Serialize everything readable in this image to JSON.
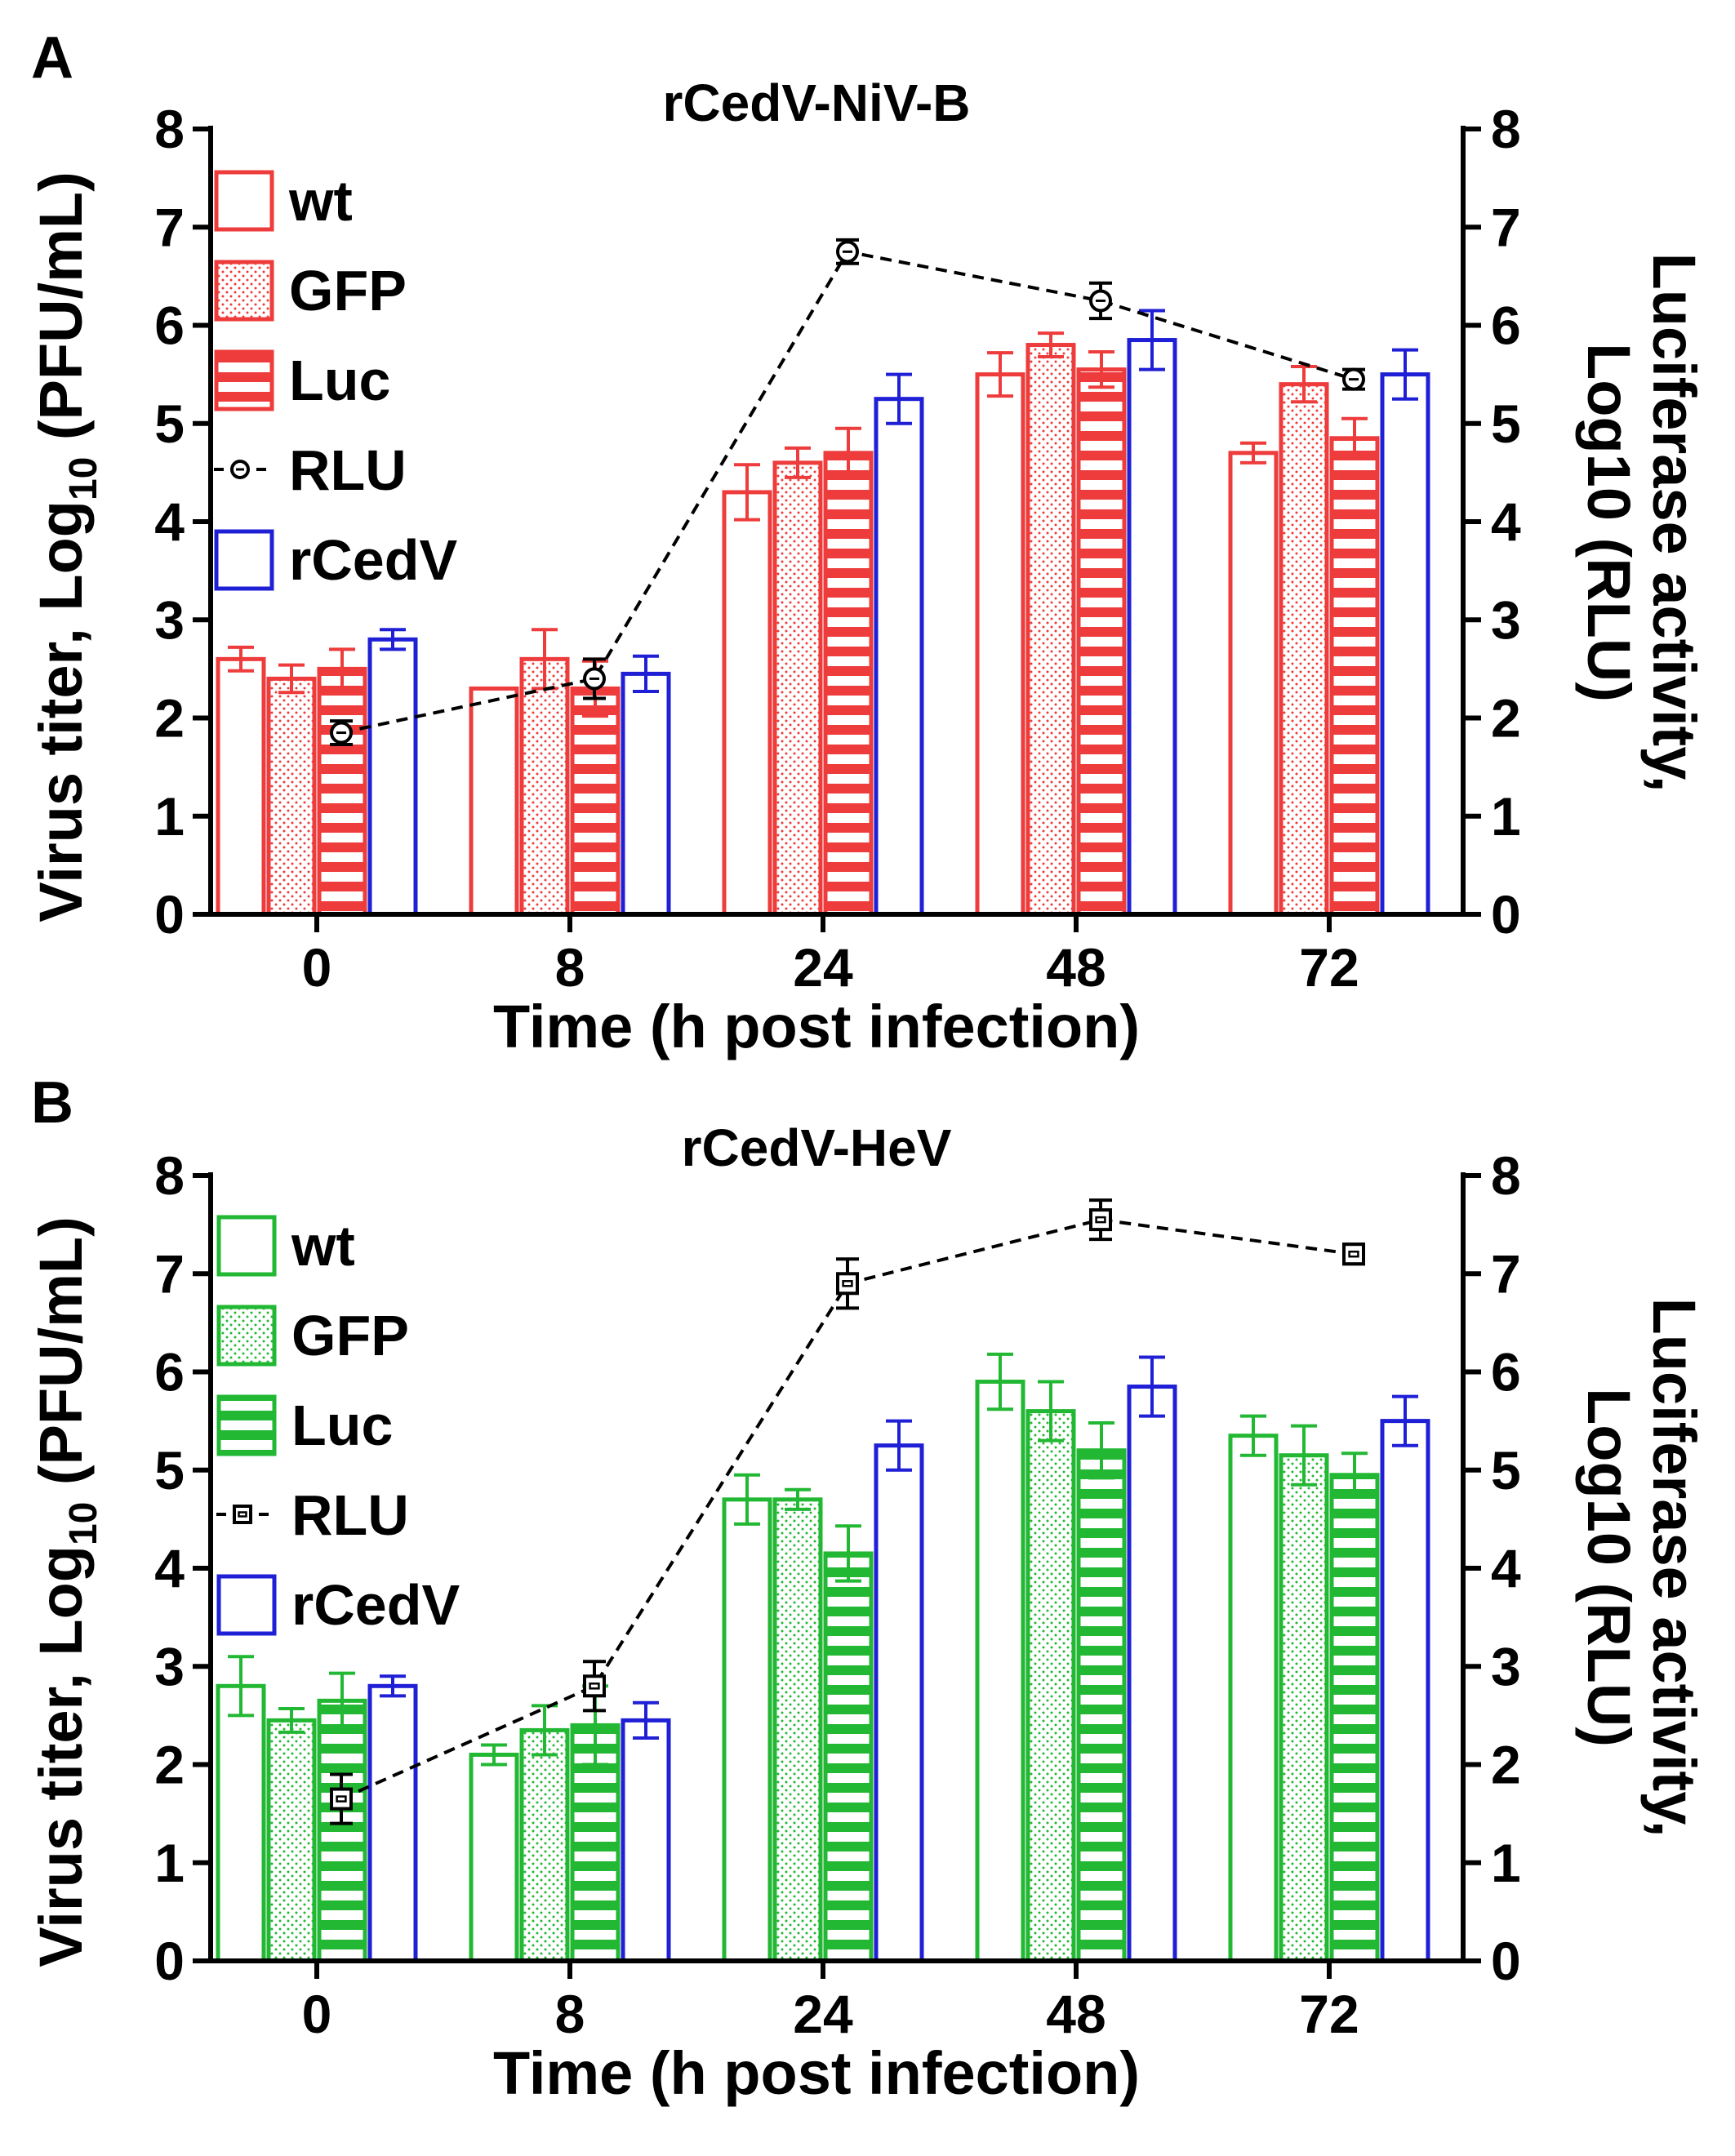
{
  "colors": {
    "red": "#ee3b3b",
    "green": "#22b833",
    "blue": "#1f1fd6",
    "black": "#000000"
  },
  "chart_data": [
    {
      "panel": "A",
      "type": "bar",
      "title": "rCedV-NiV-B",
      "xlabel": "Time (h post infection)",
      "ylabel_parts": [
        "Virus titer, Log",
        "10",
        " (PFU/mL)"
      ],
      "y2label_lines": [
        "Luciferase activity,",
        "Log10 (RLU)"
      ],
      "ylim": [
        0,
        8
      ],
      "y2lim": [
        0,
        8
      ],
      "yticks": [
        "0",
        "1",
        "2",
        "3",
        "4",
        "5",
        "6",
        "7",
        "8"
      ],
      "categories": [
        "0",
        "8",
        "24",
        "48",
        "72"
      ],
      "color": "red",
      "series": [
        {
          "name": "wt",
          "pattern": "open",
          "color": "red",
          "values": [
            2.6,
            2.3,
            4.3,
            5.5,
            4.7
          ],
          "err": [
            0.12,
            0.0,
            0.28,
            0.22,
            0.1
          ]
        },
        {
          "name": "GFP",
          "pattern": "dots",
          "color": "red",
          "values": [
            2.4,
            2.6,
            4.6,
            5.8,
            5.4
          ],
          "err": [
            0.14,
            0.3,
            0.15,
            0.12,
            0.18
          ]
        },
        {
          "name": "Luc",
          "pattern": "hlines",
          "color": "red",
          "values": [
            2.5,
            2.3,
            4.7,
            5.55,
            4.85
          ],
          "err": [
            0.2,
            0.28,
            0.25,
            0.18,
            0.2
          ]
        },
        {
          "name": "rCedV",
          "pattern": "open",
          "color": "blue",
          "values": [
            2.8,
            2.45,
            5.25,
            5.85,
            5.5
          ],
          "err": [
            0.1,
            0.18,
            0.25,
            0.3,
            0.25
          ]
        }
      ],
      "rlu": {
        "name": "RLU",
        "marker": "circle",
        "values": [
          1.85,
          2.4,
          6.75,
          6.25,
          5.45
        ],
        "err": [
          0.12,
          0.2,
          0.12,
          0.18,
          0.1
        ]
      },
      "legend": [
        "wt",
        "GFP",
        "Luc",
        "RLU",
        "rCedV"
      ]
    },
    {
      "panel": "B",
      "type": "bar",
      "title": "rCedV-HeV",
      "xlabel": "Time (h post infection)",
      "ylabel_parts": [
        "Virus titer, Log",
        "10",
        " (PFU/mL)"
      ],
      "y2label_lines": [
        "Luciferase activity,",
        "Log10 (RLU)"
      ],
      "ylim": [
        0,
        8
      ],
      "y2lim": [
        0,
        8
      ],
      "yticks": [
        "0",
        "1",
        "2",
        "3",
        "4",
        "5",
        "6",
        "7",
        "8"
      ],
      "categories": [
        "0",
        "8",
        "24",
        "48",
        "72"
      ],
      "color": "green",
      "series": [
        {
          "name": "wt",
          "pattern": "open",
          "color": "green",
          "values": [
            2.8,
            2.1,
            4.7,
            5.9,
            5.35
          ],
          "err": [
            0.3,
            0.1,
            0.25,
            0.28,
            0.2
          ]
        },
        {
          "name": "GFP",
          "pattern": "dots",
          "color": "green",
          "values": [
            2.45,
            2.35,
            4.7,
            5.6,
            5.15
          ],
          "err": [
            0.12,
            0.25,
            0.1,
            0.3,
            0.3
          ]
        },
        {
          "name": "Luc",
          "pattern": "hlines",
          "color": "green",
          "values": [
            2.65,
            2.4,
            4.15,
            5.2,
            4.95
          ],
          "err": [
            0.28,
            0.4,
            0.28,
            0.28,
            0.22
          ]
        },
        {
          "name": "rCedV",
          "pattern": "open",
          "color": "blue",
          "values": [
            2.8,
            2.45,
            5.25,
            5.85,
            5.5
          ],
          "err": [
            0.1,
            0.18,
            0.25,
            0.3,
            0.25
          ]
        }
      ],
      "rlu": {
        "name": "RLU",
        "marker": "square",
        "values": [
          1.65,
          2.8,
          6.9,
          7.55,
          7.2
        ],
        "err": [
          0.25,
          0.25,
          0.25,
          0.2,
          0.1
        ]
      },
      "legend": [
        "wt",
        "GFP",
        "Luc",
        "RLU",
        "rCedV"
      ]
    }
  ]
}
